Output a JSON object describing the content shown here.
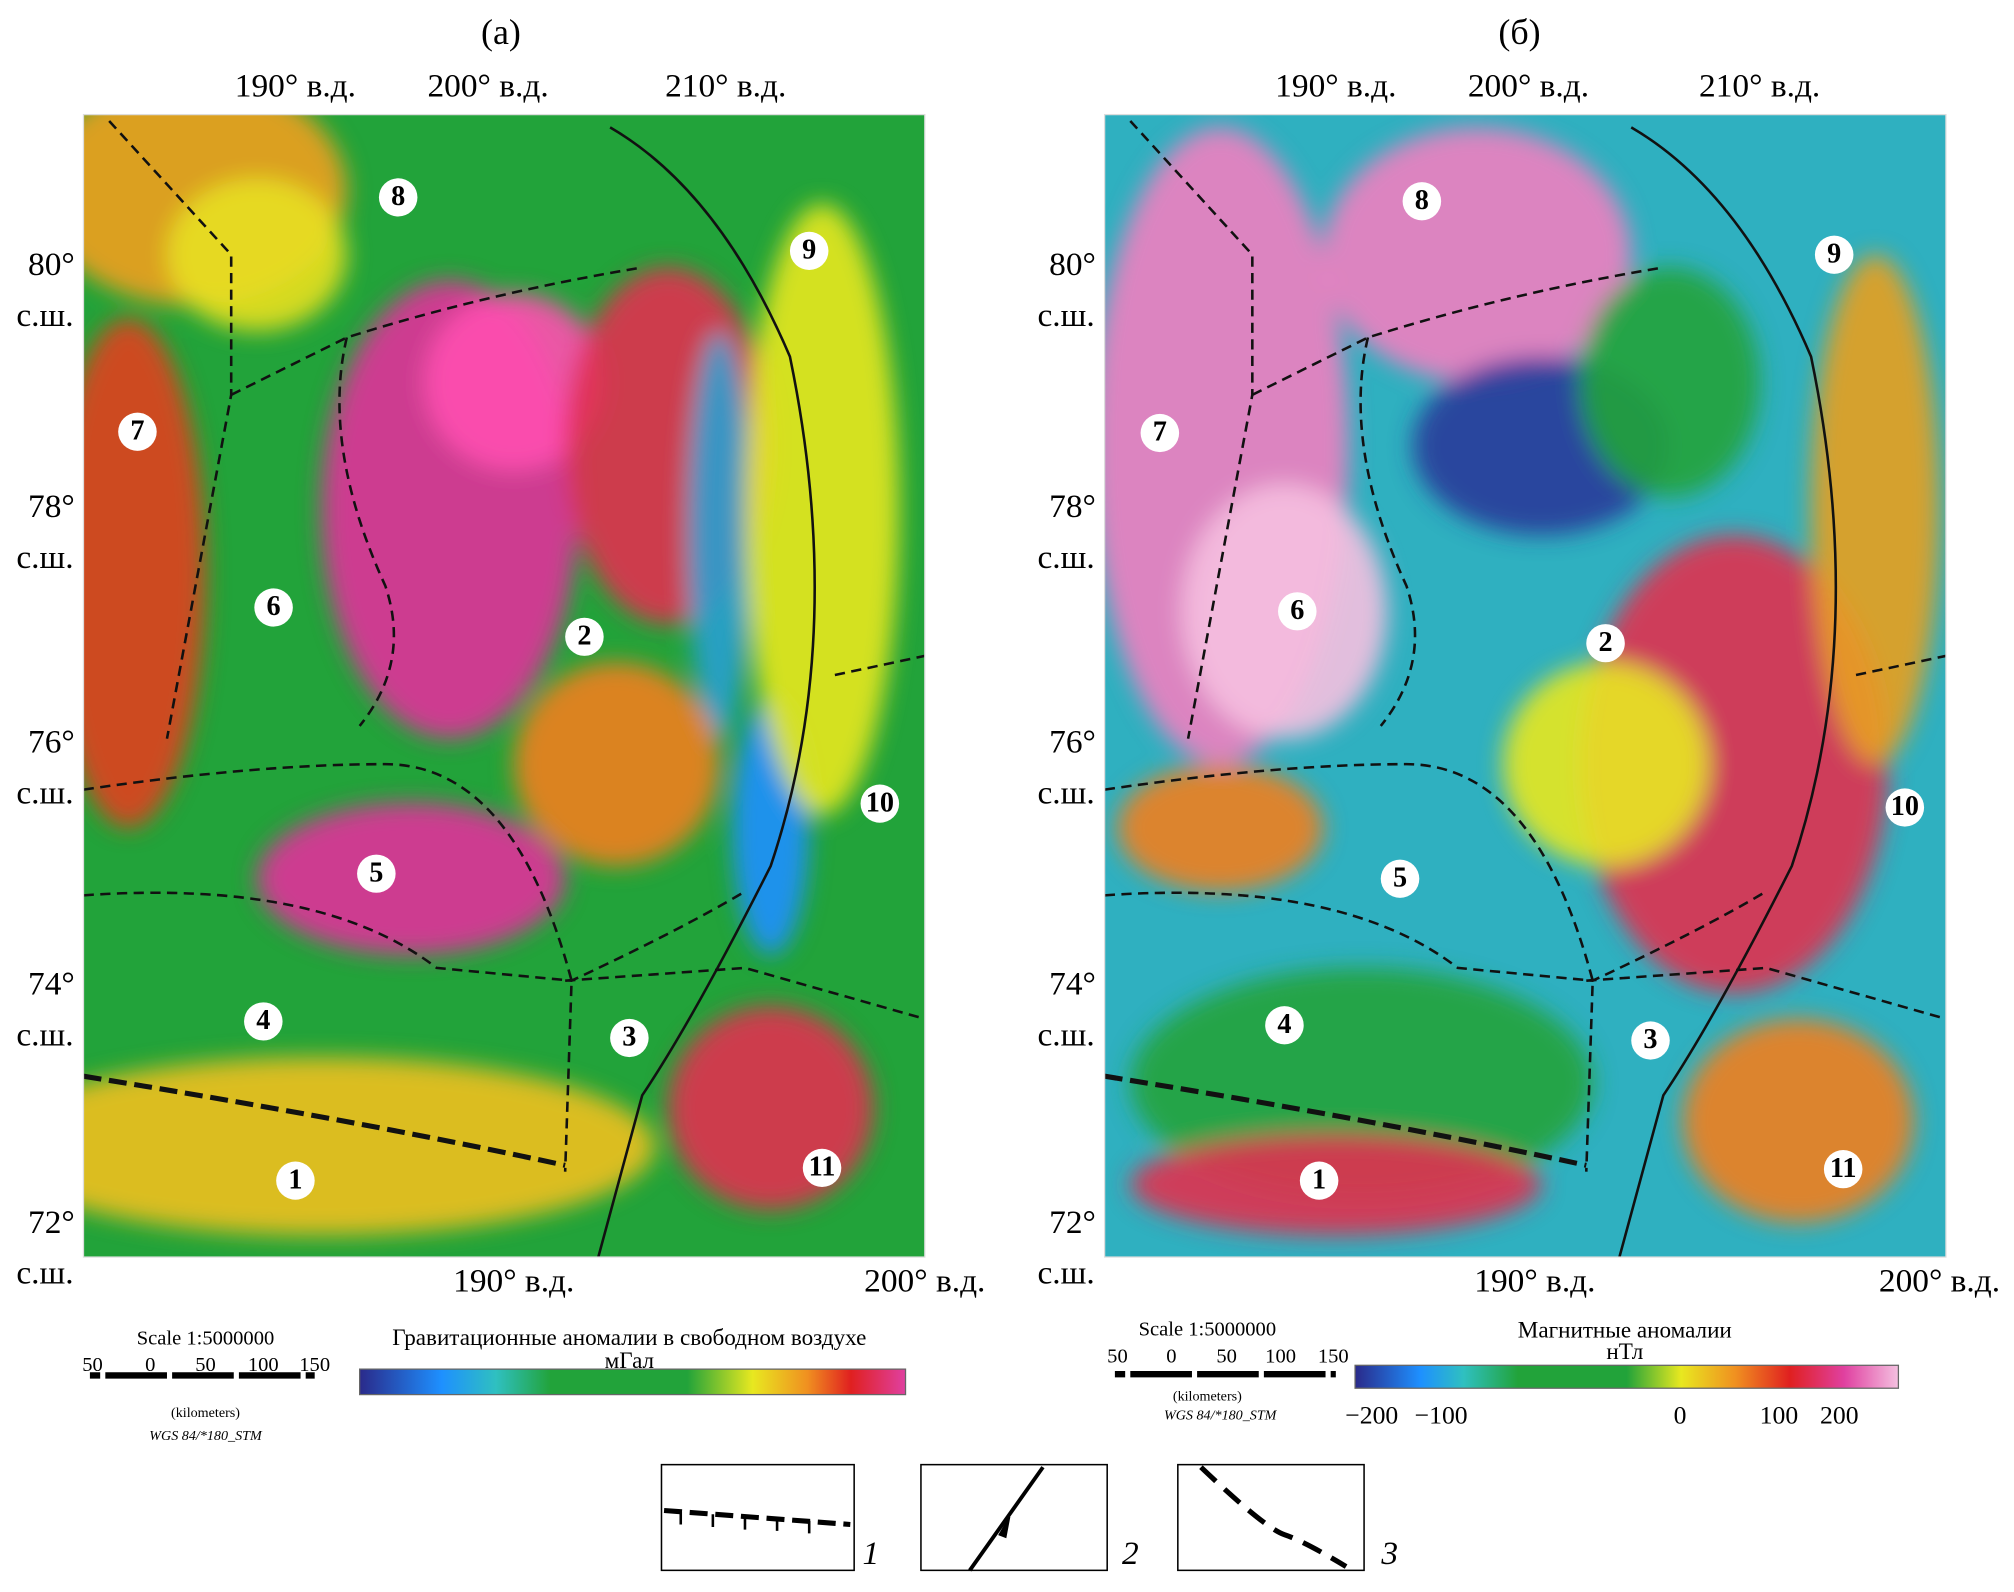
{
  "panels": [
    {
      "label": "(а)",
      "top_lon_labels": [
        "190° в.д.",
        "200° в.д.",
        "210° в.д."
      ],
      "lat_labels": [
        [
          "80°",
          "с.ш."
        ],
        [
          "78°",
          "с.ш."
        ],
        [
          "76°",
          "с.ш."
        ],
        [
          "74°",
          "с.ш."
        ],
        [
          "72°",
          "с.ш."
        ]
      ],
      "bottom_lon_labels": [
        "190° в.д.",
        "200° в.д."
      ],
      "regions": [
        "1",
        "2",
        "3",
        "4",
        "5",
        "6",
        "7",
        "8",
        "9",
        "10",
        "11"
      ],
      "scale": {
        "title": "Scale 1:5000000",
        "ticks": [
          "50",
          "0",
          "50",
          "100",
          "150"
        ],
        "unit": "(kilometers)",
        "projection": "WGS 84/*180_STM"
      },
      "colorbar": {
        "title": "Гравитационные аномалии в свободном воздухе",
        "unit": "мГал"
      }
    },
    {
      "label": "(б)",
      "top_lon_labels": [
        "190° в.д.",
        "200° в.д.",
        "210° в.д."
      ],
      "lat_labels": [
        [
          "80°",
          "с.ш."
        ],
        [
          "78°",
          "с.ш."
        ],
        [
          "76°",
          "с.ш."
        ],
        [
          "74°",
          "с.ш."
        ],
        [
          "72°",
          "с.ш."
        ]
      ],
      "bottom_lon_labels": [
        "190° в.д.",
        "200° в.д."
      ],
      "regions": [
        "1",
        "2",
        "3",
        "4",
        "5",
        "6",
        "7",
        "8",
        "9",
        "10",
        "11"
      ],
      "scale": {
        "title": "Scale 1:5000000",
        "ticks": [
          "50",
          "0",
          "50",
          "100",
          "150"
        ],
        "unit": "(kilometers)",
        "projection": "WGS 84/*180_STM"
      },
      "colorbar": {
        "title": "Магнитные аномалии",
        "unit": "нТл",
        "ticks": [
          "−200",
          "−100",
          "0",
          "100",
          "200"
        ]
      }
    }
  ],
  "legend": [
    "1",
    "2",
    "3"
  ]
}
